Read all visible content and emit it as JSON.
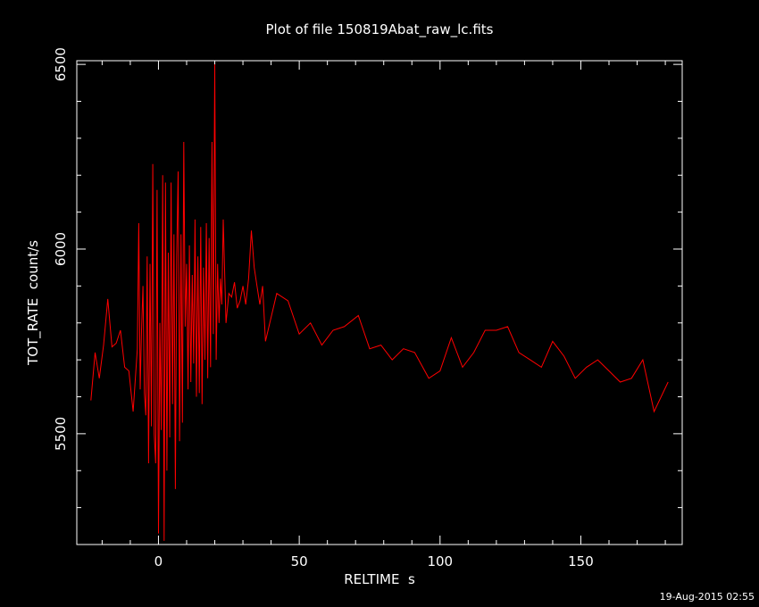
{
  "chart_data": {
    "type": "line",
    "title": "Plot of file 150819Abat_raw_lc.fits",
    "xlabel": "RELTIME  s",
    "ylabel": "TOT_RATE  count/s",
    "xlim": [
      -29,
      186
    ],
    "ylim": [
      5200,
      6510
    ],
    "x_ticks": [
      0,
      50,
      100,
      150
    ],
    "x_tick_labels": [
      "0",
      "50",
      "100",
      "150"
    ],
    "x_minor_step": 10,
    "y_ticks": [
      5500,
      6000,
      6500
    ],
    "y_tick_labels": [
      "5500",
      "6000",
      "6500"
    ],
    "y_minor_step": 100,
    "grid": false,
    "background": "#000000",
    "axes_color": "#ffffff",
    "series": [
      {
        "color": "#ff0000",
        "x": [
          -24,
          -22.5,
          -21,
          -19.5,
          -18,
          -16.5,
          -15,
          -13.5,
          -12,
          -10.5,
          -9,
          -7.5,
          -7,
          -6.5,
          -6,
          -5.5,
          -5,
          -4.5,
          -4,
          -3.5,
          -3,
          -2.5,
          -2,
          -1.5,
          -1,
          -0.5,
          0,
          0.5,
          1,
          1.5,
          2,
          2.5,
          3,
          3.5,
          4,
          4.5,
          5,
          5.5,
          6,
          6.5,
          7,
          7.5,
          8,
          8.5,
          9,
          9.5,
          10,
          10.5,
          11,
          11.5,
          12,
          12.5,
          13,
          13.5,
          14,
          14.5,
          15,
          15.5,
          16,
          16.5,
          17,
          17.5,
          18,
          18.5,
          19,
          19.5,
          20,
          20.5,
          21,
          21.5,
          22,
          22.5,
          23,
          24,
          25,
          26,
          27,
          28,
          29,
          30,
          31,
          32,
          33,
          34,
          35,
          36,
          37,
          38,
          42,
          46,
          50,
          54,
          58,
          62,
          66,
          71,
          75,
          79,
          83,
          87,
          91,
          96,
          100,
          104,
          108,
          112,
          116,
          120,
          124,
          128,
          132,
          136,
          140,
          144,
          148,
          152,
          156,
          160,
          164,
          168,
          172,
          176,
          181
        ],
        "y": [
          5590,
          5720,
          5650,
          5740,
          5865,
          5735,
          5745,
          5780,
          5680,
          5670,
          5560,
          5730,
          6070,
          5620,
          5780,
          5900,
          5610,
          5550,
          5980,
          5420,
          5960,
          5520,
          6230,
          5500,
          5420,
          6160,
          5230,
          5800,
          5510,
          6200,
          5210,
          6180,
          5400,
          5990,
          5490,
          6180,
          5580,
          6040,
          5350,
          5980,
          6210,
          5480,
          6040,
          5530,
          6290,
          5790,
          5960,
          5620,
          6010,
          5640,
          5930,
          5690,
          6080,
          5600,
          5980,
          5610,
          6060,
          5580,
          5950,
          5700,
          6070,
          5650,
          6030,
          5680,
          6290,
          5770,
          6500,
          5700,
          5960,
          5800,
          5920,
          5850,
          6080,
          5800,
          5880,
          5870,
          5910,
          5840,
          5860,
          5900,
          5850,
          5920,
          6050,
          5950,
          5900,
          5850,
          5900,
          5750,
          5880,
          5860,
          5770,
          5800,
          5740,
          5780,
          5790,
          5820,
          5730,
          5740,
          5700,
          5730,
          5720,
          5650,
          5670,
          5760,
          5680,
          5720,
          5780,
          5780,
          5790,
          5720,
          5700,
          5680,
          5750,
          5710,
          5650,
          5680,
          5700,
          5670,
          5640,
          5650,
          5700,
          5560,
          5640
        ]
      }
    ]
  },
  "timestamp": "19-Aug-2015 02:55"
}
